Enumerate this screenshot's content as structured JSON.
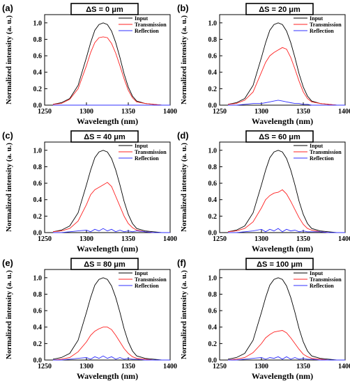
{
  "colors": {
    "input": "#000000",
    "transmission": "#ff2020",
    "reflection": "#3030ff"
  },
  "chart_data": [
    {
      "panel": "(a)",
      "title": "ΔS = 0 μm",
      "type": "line",
      "xlabel": "Wavelength (nm)",
      "ylabel": "Normalized intensity (a. u.)",
      "xlim": [
        1250,
        1400
      ],
      "ylim": [
        0,
        1.1
      ],
      "xticks": [
        "1250",
        "1300",
        "1350",
        "1400"
      ],
      "yticks": [
        "0.0",
        "0.2",
        "0.4",
        "0.6",
        "0.8",
        "1.0"
      ],
      "legend": [
        "Input",
        "Transmission",
        "Reflection"
      ],
      "x": [
        1260,
        1270,
        1280,
        1290,
        1300,
        1305,
        1310,
        1315,
        1320,
        1325,
        1330,
        1335,
        1340,
        1345,
        1350,
        1355,
        1360,
        1370,
        1380,
        1390,
        1400
      ],
      "series": [
        {
          "name": "Input",
          "values": [
            0.01,
            0.03,
            0.08,
            0.24,
            0.58,
            0.76,
            0.91,
            0.98,
            1.0,
            0.98,
            0.9,
            0.76,
            0.58,
            0.38,
            0.22,
            0.11,
            0.05,
            0.02,
            0.01,
            0.0,
            0.0
          ]
        },
        {
          "name": "Transmission",
          "values": [
            0.01,
            0.02,
            0.07,
            0.2,
            0.48,
            0.64,
            0.76,
            0.82,
            0.83,
            0.82,
            0.75,
            0.63,
            0.48,
            0.32,
            0.18,
            0.09,
            0.04,
            0.02,
            0.01,
            0.0,
            0.0
          ]
        },
        {
          "name": "Reflection",
          "values": [
            0.0,
            0.0,
            0.0,
            0.0,
            0.0,
            0.0,
            0.0,
            0.0,
            0.0,
            0.0,
            0.0,
            0.0,
            0.0,
            0.0,
            0.0,
            0.0,
            0.0,
            0.0,
            0.0,
            0.0,
            0.0
          ]
        }
      ]
    },
    {
      "panel": "(b)",
      "title": "ΔS = 20 μm",
      "type": "line",
      "xlabel": "Wavelength (nm)",
      "ylabel": "Normalized intensity (a. u.)",
      "xlim": [
        1250,
        1400
      ],
      "ylim": [
        0,
        1.1
      ],
      "xticks": [
        "1250",
        "1300",
        "1350",
        "1400"
      ],
      "yticks": [
        "0.0",
        "0.2",
        "0.4",
        "0.6",
        "0.8",
        "1.0"
      ],
      "legend": [
        "Input",
        "Transmission",
        "Reflection"
      ],
      "x": [
        1260,
        1270,
        1280,
        1290,
        1300,
        1305,
        1310,
        1315,
        1320,
        1325,
        1330,
        1335,
        1340,
        1345,
        1350,
        1355,
        1360,
        1370,
        1380,
        1390,
        1400
      ],
      "series": [
        {
          "name": "Input",
          "values": [
            0.01,
            0.03,
            0.08,
            0.24,
            0.58,
            0.76,
            0.91,
            0.98,
            1.0,
            0.98,
            0.9,
            0.76,
            0.58,
            0.38,
            0.22,
            0.11,
            0.05,
            0.02,
            0.01,
            0.0,
            0.0
          ]
        },
        {
          "name": "Transmission",
          "values": [
            0.01,
            0.02,
            0.06,
            0.16,
            0.4,
            0.52,
            0.6,
            0.64,
            0.67,
            0.7,
            0.68,
            0.58,
            0.44,
            0.29,
            0.16,
            0.08,
            0.04,
            0.02,
            0.01,
            0.0,
            0.0
          ]
        },
        {
          "name": "Reflection",
          "values": [
            0.0,
            0.0,
            0.01,
            0.02,
            0.02,
            0.03,
            0.04,
            0.05,
            0.06,
            0.05,
            0.04,
            0.03,
            0.02,
            0.02,
            0.01,
            0.01,
            0.0,
            0.0,
            0.0,
            0.0,
            0.0
          ]
        }
      ]
    },
    {
      "panel": "(c)",
      "title": "ΔS = 40 μm",
      "type": "line",
      "xlabel": "Wavelength (nm)",
      "ylabel": "Normalized intensity (a. u.)",
      "xlim": [
        1250,
        1400
      ],
      "ylim": [
        0,
        1.1
      ],
      "xticks": [
        "1250",
        "1300",
        "1350",
        "1400"
      ],
      "yticks": [
        "0.0",
        "0.2",
        "0.4",
        "0.6",
        "0.8",
        "1.0"
      ],
      "legend": [
        "Input",
        "Transmission",
        "Reflection"
      ],
      "x": [
        1260,
        1270,
        1280,
        1290,
        1300,
        1305,
        1310,
        1315,
        1320,
        1325,
        1330,
        1335,
        1340,
        1345,
        1350,
        1355,
        1360,
        1370,
        1380,
        1390,
        1400
      ],
      "series": [
        {
          "name": "Input",
          "values": [
            0.01,
            0.03,
            0.08,
            0.24,
            0.58,
            0.76,
            0.91,
            0.98,
            1.0,
            0.98,
            0.9,
            0.76,
            0.58,
            0.38,
            0.22,
            0.11,
            0.05,
            0.02,
            0.01,
            0.0,
            0.0
          ]
        },
        {
          "name": "Transmission",
          "values": [
            0.01,
            0.02,
            0.05,
            0.14,
            0.34,
            0.46,
            0.52,
            0.55,
            0.58,
            0.61,
            0.56,
            0.44,
            0.32,
            0.2,
            0.11,
            0.06,
            0.03,
            0.01,
            0.0,
            0.0,
            0.0
          ]
        },
        {
          "name": "Reflection",
          "values": [
            0.0,
            0.0,
            0.01,
            0.02,
            0.03,
            0.01,
            0.04,
            0.02,
            0.05,
            0.02,
            0.04,
            0.01,
            0.03,
            0.01,
            0.02,
            0.01,
            0.02,
            0.01,
            0.0,
            0.0,
            0.0
          ]
        }
      ]
    },
    {
      "panel": "(d)",
      "title": "ΔS = 60 μm",
      "type": "line",
      "xlabel": "Wavelength (nm)",
      "ylabel": "Normalized intensity (a. u.)",
      "xlim": [
        1250,
        1400
      ],
      "ylim": [
        0,
        1.1
      ],
      "xticks": [
        "1250",
        "1300",
        "1350",
        "1400"
      ],
      "yticks": [
        "0.0",
        "0.2",
        "0.4",
        "0.6",
        "0.8",
        "1.0"
      ],
      "legend": [
        "Input",
        "Transmission",
        "Reflection"
      ],
      "x": [
        1260,
        1270,
        1280,
        1290,
        1300,
        1305,
        1310,
        1315,
        1320,
        1325,
        1330,
        1335,
        1340,
        1345,
        1350,
        1355,
        1360,
        1370,
        1380,
        1390,
        1400
      ],
      "series": [
        {
          "name": "Input",
          "values": [
            0.01,
            0.03,
            0.08,
            0.24,
            0.58,
            0.76,
            0.91,
            0.98,
            1.0,
            0.98,
            0.9,
            0.76,
            0.58,
            0.38,
            0.22,
            0.11,
            0.05,
            0.02,
            0.01,
            0.0,
            0.0
          ]
        },
        {
          "name": "Transmission",
          "values": [
            0.01,
            0.02,
            0.05,
            0.13,
            0.3,
            0.4,
            0.45,
            0.48,
            0.49,
            0.52,
            0.47,
            0.38,
            0.28,
            0.18,
            0.1,
            0.05,
            0.03,
            0.01,
            0.0,
            0.0,
            0.0
          ]
        },
        {
          "name": "Reflection",
          "values": [
            0.0,
            0.0,
            0.01,
            0.02,
            0.04,
            0.01,
            0.04,
            0.02,
            0.05,
            0.01,
            0.04,
            0.02,
            0.03,
            0.01,
            0.02,
            0.01,
            0.01,
            0.01,
            0.0,
            0.0,
            0.0
          ]
        }
      ]
    },
    {
      "panel": "(e)",
      "title": "ΔS = 80 μm",
      "type": "line",
      "xlabel": "Wavelength (nm)",
      "ylabel": "Normalized intensity (a. u.)",
      "xlim": [
        1250,
        1400
      ],
      "ylim": [
        0,
        1.1
      ],
      "xticks": [
        "1250",
        "1300",
        "1350",
        "1400"
      ],
      "yticks": [
        "0.0",
        "0.2",
        "0.4",
        "0.6",
        "0.8",
        "1.0"
      ],
      "legend": [
        "Input",
        "Transmission",
        "Reflection"
      ],
      "x": [
        1260,
        1270,
        1280,
        1290,
        1300,
        1305,
        1310,
        1315,
        1320,
        1325,
        1330,
        1335,
        1340,
        1345,
        1350,
        1355,
        1360,
        1370,
        1380,
        1390,
        1400
      ],
      "series": [
        {
          "name": "Input",
          "values": [
            0.01,
            0.03,
            0.08,
            0.24,
            0.58,
            0.76,
            0.91,
            0.98,
            1.0,
            0.98,
            0.9,
            0.76,
            0.58,
            0.38,
            0.22,
            0.11,
            0.05,
            0.02,
            0.01,
            0.0,
            0.0
          ]
        },
        {
          "name": "Transmission",
          "values": [
            0.0,
            0.01,
            0.03,
            0.1,
            0.22,
            0.3,
            0.35,
            0.38,
            0.4,
            0.4,
            0.37,
            0.3,
            0.22,
            0.14,
            0.08,
            0.04,
            0.02,
            0.01,
            0.0,
            0.0,
            0.0
          ]
        },
        {
          "name": "Reflection",
          "values": [
            0.0,
            0.0,
            0.01,
            0.02,
            0.03,
            0.01,
            0.04,
            0.02,
            0.05,
            0.02,
            0.04,
            0.01,
            0.03,
            0.01,
            0.02,
            0.01,
            0.01,
            0.0,
            0.0,
            0.0,
            0.0
          ]
        }
      ]
    },
    {
      "panel": "(f)",
      "title": "ΔS = 100 μm",
      "type": "line",
      "xlabel": "Wavelength (nm)",
      "ylabel": "Normalized intensity (a. u.)",
      "xlim": [
        1250,
        1400
      ],
      "ylim": [
        0,
        1.1
      ],
      "xticks": [
        "1250",
        "1300",
        "1350",
        "1400"
      ],
      "yticks": [
        "0.0",
        "0.2",
        "0.4",
        "0.6",
        "0.8",
        "1.0"
      ],
      "legend": [
        "Input",
        "Transmission",
        "Reflection"
      ],
      "x": [
        1260,
        1270,
        1280,
        1290,
        1300,
        1305,
        1310,
        1315,
        1320,
        1325,
        1330,
        1335,
        1340,
        1345,
        1350,
        1355,
        1360,
        1370,
        1380,
        1390,
        1400
      ],
      "series": [
        {
          "name": "Input",
          "values": [
            0.01,
            0.03,
            0.08,
            0.24,
            0.58,
            0.76,
            0.91,
            0.98,
            1.0,
            0.98,
            0.9,
            0.76,
            0.58,
            0.38,
            0.22,
            0.11,
            0.05,
            0.02,
            0.01,
            0.0,
            0.0
          ]
        },
        {
          "name": "Transmission",
          "values": [
            0.0,
            0.01,
            0.03,
            0.09,
            0.2,
            0.27,
            0.31,
            0.34,
            0.35,
            0.36,
            0.33,
            0.27,
            0.2,
            0.13,
            0.07,
            0.04,
            0.02,
            0.01,
            0.0,
            0.0,
            0.0
          ]
        },
        {
          "name": "Reflection",
          "values": [
            0.0,
            0.0,
            0.01,
            0.02,
            0.03,
            0.01,
            0.03,
            0.02,
            0.04,
            0.01,
            0.04,
            0.01,
            0.03,
            0.01,
            0.02,
            0.01,
            0.01,
            0.0,
            0.0,
            0.0,
            0.0
          ]
        }
      ]
    }
  ]
}
